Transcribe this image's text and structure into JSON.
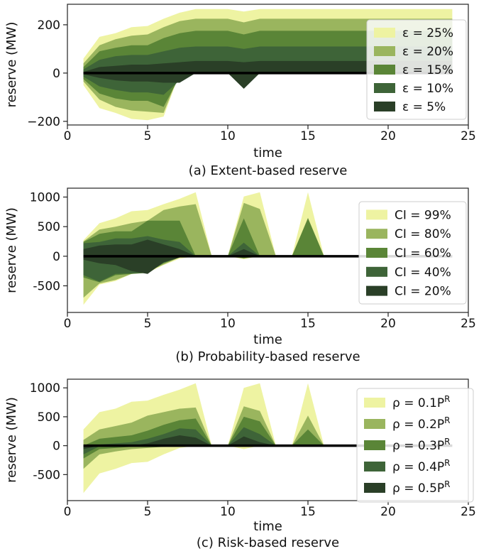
{
  "figure": {
    "colors": [
      "#eef3a2",
      "#9ab55e",
      "#5a8537",
      "#3e6438",
      "#2a3f27"
    ]
  },
  "chart_data": [
    {
      "type": "area",
      "title": "",
      "caption": "(a) Extent-based reserve",
      "xlabel": "time",
      "ylabel": "reserve (MW)",
      "xlim": [
        0,
        25
      ],
      "ylim": [
        -215,
        285
      ],
      "xticks": [
        0,
        5,
        10,
        15,
        20,
        25
      ],
      "yticks": [
        -200,
        0,
        200
      ],
      "ytick_labels": [
        "−200",
        "0",
        "200"
      ],
      "legend": {
        "placement": "right",
        "entries": [
          "ε = 25%",
          "ε = 20%",
          "ε = 15%",
          "ε = 10%",
          "ε = 5%"
        ]
      },
      "x": [
        1,
        2,
        3,
        4,
        5,
        6,
        7,
        8,
        9,
        10,
        11,
        12,
        13,
        14,
        15,
        16,
        17,
        18,
        19,
        20,
        21,
        22,
        23,
        24
      ],
      "series": [
        {
          "name": "ε = 25%",
          "upper": [
            60,
            150,
            165,
            190,
            195,
            225,
            250,
            265,
            265,
            265,
            255,
            265,
            265,
            265,
            265,
            265,
            265,
            265,
            265,
            265,
            265,
            265,
            265,
            265
          ],
          "lower": [
            -50,
            -145,
            -165,
            -190,
            -195,
            -180,
            0,
            0,
            0,
            0,
            0,
            0,
            0,
            0,
            0,
            0,
            0,
            0,
            0,
            0,
            0,
            0,
            0,
            0
          ]
        },
        {
          "name": "ε = 20%",
          "upper": [
            40,
            115,
            140,
            155,
            160,
            190,
            215,
            225,
            225,
            225,
            210,
            225,
            225,
            225,
            225,
            225,
            225,
            225,
            225,
            225,
            225,
            225,
            225,
            225
          ],
          "lower": [
            -35,
            -110,
            -140,
            -155,
            -160,
            -165,
            0,
            0,
            0,
            0,
            0,
            0,
            0,
            0,
            0,
            0,
            0,
            0,
            0,
            0,
            0,
            0,
            0,
            0
          ]
        },
        {
          "name": "ε = 15%",
          "upper": [
            25,
            90,
            105,
            115,
            115,
            145,
            165,
            175,
            175,
            175,
            160,
            175,
            175,
            175,
            175,
            175,
            175,
            175,
            175,
            175,
            175,
            175,
            175,
            175
          ],
          "lower": [
            -25,
            -85,
            -105,
            -115,
            -115,
            -140,
            -15,
            0,
            0,
            0,
            -30,
            0,
            0,
            0,
            0,
            0,
            0,
            0,
            0,
            0,
            0,
            0,
            0,
            0
          ]
        },
        {
          "name": "ε = 10%",
          "upper": [
            15,
            55,
            70,
            75,
            75,
            90,
            105,
            110,
            110,
            110,
            100,
            110,
            110,
            110,
            110,
            110,
            110,
            110,
            110,
            110,
            110,
            110,
            110,
            110
          ],
          "lower": [
            -15,
            -55,
            -70,
            -80,
            -80,
            -90,
            -30,
            0,
            0,
            0,
            -55,
            0,
            0,
            0,
            0,
            0,
            0,
            0,
            0,
            0,
            0,
            0,
            0,
            0
          ]
        },
        {
          "name": "ε = 5%",
          "upper": [
            5,
            25,
            30,
            35,
            35,
            40,
            45,
            50,
            50,
            50,
            45,
            50,
            50,
            50,
            50,
            50,
            50,
            50,
            50,
            50,
            50,
            50,
            50,
            50
          ],
          "lower": [
            -5,
            -20,
            -30,
            -35,
            -35,
            -40,
            -40,
            0,
            0,
            0,
            -65,
            0,
            0,
            0,
            0,
            0,
            0,
            0,
            0,
            0,
            0,
            0,
            0,
            0
          ]
        }
      ]
    },
    {
      "type": "area",
      "title": "",
      "caption": "(b) Probability-based reserve",
      "xlabel": "time",
      "ylabel": "reserve (MW)",
      "xlim": [
        0,
        25
      ],
      "ylim": [
        -950,
        1150
      ],
      "xticks": [
        0,
        5,
        10,
        15,
        20,
        25
      ],
      "yticks": [
        -500,
        0,
        500,
        1000
      ],
      "ytick_labels": [
        "-500",
        "0",
        "500",
        "1000"
      ],
      "legend": {
        "placement": "right",
        "entries": [
          "CI = 99%",
          "CI = 80%",
          "CI = 60%",
          "CI = 40%",
          "CI = 20%"
        ]
      },
      "x": [
        1,
        2,
        3,
        4,
        5,
        6,
        7,
        8,
        9,
        10,
        11,
        12,
        13,
        14,
        15,
        16,
        17,
        18,
        19,
        20,
        21,
        22,
        23,
        24
      ],
      "series": [
        {
          "name": "CI = 99%",
          "upper": [
            270,
            560,
            640,
            760,
            780,
            880,
            970,
            1080,
            0,
            0,
            1010,
            1080,
            0,
            0,
            1080,
            0,
            0,
            0,
            0,
            0,
            0,
            0,
            0,
            0
          ],
          "lower": [
            -820,
            -480,
            -420,
            -300,
            -280,
            -150,
            -40,
            0,
            0,
            0,
            -50,
            0,
            0,
            0,
            0,
            0,
            0,
            0,
            0,
            0,
            0,
            0,
            0,
            0
          ]
        },
        {
          "name": "CI = 80%",
          "upper": [
            250,
            450,
            500,
            560,
            600,
            780,
            840,
            880,
            0,
            0,
            900,
            800,
            0,
            0,
            650,
            0,
            0,
            0,
            0,
            0,
            0,
            0,
            0,
            0
          ],
          "lower": [
            -700,
            -460,
            -400,
            -300,
            -260,
            -140,
            -20,
            0,
            0,
            0,
            -40,
            0,
            0,
            0,
            0,
            0,
            0,
            0,
            0,
            0,
            0,
            0,
            0,
            0
          ]
        },
        {
          "name": "CI = 60%",
          "upper": [
            240,
            380,
            420,
            420,
            600,
            600,
            600,
            0,
            0,
            0,
            640,
            0,
            0,
            0,
            640,
            0,
            0,
            0,
            0,
            0,
            0,
            0,
            0,
            0
          ],
          "lower": [
            -360,
            -440,
            -320,
            -300,
            -280,
            -120,
            -20,
            0,
            0,
            0,
            -30,
            0,
            0,
            0,
            0,
            0,
            0,
            0,
            0,
            0,
            0,
            0,
            0,
            0
          ]
        },
        {
          "name": "CI = 40%",
          "upper": [
            220,
            240,
            300,
            300,
            340,
            280,
            240,
            0,
            0,
            0,
            230,
            0,
            0,
            0,
            0,
            0,
            0,
            0,
            0,
            0,
            0,
            0,
            0,
            0
          ],
          "lower": [
            -320,
            -430,
            -300,
            -290,
            -280,
            -110,
            -20,
            0,
            0,
            0,
            -20,
            0,
            0,
            0,
            0,
            0,
            0,
            0,
            0,
            0,
            0,
            0,
            0,
            0
          ]
        },
        {
          "name": "CI = 20%",
          "upper": [
            120,
            180,
            200,
            200,
            280,
            200,
            120,
            0,
            0,
            0,
            120,
            0,
            0,
            0,
            0,
            0,
            0,
            0,
            0,
            0,
            0,
            0,
            0,
            0
          ],
          "lower": [
            -60,
            -120,
            -150,
            -250,
            -300,
            -100,
            -20,
            0,
            0,
            0,
            -20,
            0,
            0,
            0,
            0,
            0,
            0,
            0,
            0,
            0,
            0,
            0,
            0,
            0
          ]
        }
      ]
    },
    {
      "type": "area",
      "title": "",
      "caption": "(c) Risk-based reserve",
      "xlabel": "time",
      "ylabel": "reserve (MW)",
      "xlim": [
        0,
        25
      ],
      "ylim": [
        -950,
        1150
      ],
      "xticks": [
        0,
        5,
        10,
        15,
        20,
        25
      ],
      "yticks": [
        -500,
        0,
        500,
        1000
      ],
      "ytick_labels": [
        "-500",
        "0",
        "500",
        "1000"
      ],
      "legend": {
        "placement": "right",
        "entries": [
          "ρ = 0.1P^R",
          "ρ = 0.2P^R",
          "ρ = 0.3P^R",
          "ρ = 0.4P^R",
          "ρ = 0.5P^R"
        ]
      },
      "x": [
        1,
        2,
        3,
        4,
        5,
        6,
        7,
        8,
        9,
        10,
        11,
        12,
        13,
        14,
        15,
        16,
        17,
        18,
        19,
        20,
        21,
        22,
        23,
        24
      ],
      "series": [
        {
          "name": "ρ = 0.1P^R",
          "upper": [
            280,
            580,
            640,
            760,
            780,
            880,
            970,
            1080,
            0,
            0,
            1000,
            1080,
            0,
            0,
            1080,
            0,
            0,
            0,
            0,
            0,
            0,
            0,
            0,
            0
          ],
          "lower": [
            -820,
            -480,
            -400,
            -300,
            -280,
            -150,
            -40,
            0,
            0,
            0,
            -60,
            0,
            0,
            0,
            0,
            0,
            0,
            0,
            0,
            0,
            0,
            0,
            0,
            0
          ]
        },
        {
          "name": "ρ = 0.2P^R",
          "upper": [
            100,
            280,
            340,
            400,
            520,
            580,
            640,
            660,
            0,
            0,
            680,
            600,
            0,
            0,
            520,
            0,
            0,
            0,
            0,
            0,
            0,
            0,
            0,
            0
          ],
          "lower": [
            -400,
            -150,
            -100,
            -60,
            -40,
            -20,
            0,
            0,
            0,
            0,
            0,
            0,
            0,
            0,
            0,
            0,
            0,
            0,
            0,
            0,
            0,
            0,
            0,
            0
          ]
        },
        {
          "name": "ρ = 0.3P^R",
          "upper": [
            0,
            120,
            150,
            180,
            260,
            360,
            440,
            470,
            0,
            0,
            500,
            420,
            0,
            0,
            280,
            0,
            0,
            0,
            0,
            0,
            0,
            0,
            0,
            0
          ],
          "lower": [
            -220,
            -60,
            -40,
            -20,
            -10,
            0,
            0,
            0,
            0,
            0,
            0,
            0,
            0,
            0,
            0,
            0,
            0,
            0,
            0,
            0,
            0,
            0,
            0,
            0
          ]
        },
        {
          "name": "ρ = 0.4P^R",
          "upper": [
            0,
            20,
            40,
            60,
            120,
            200,
            300,
            280,
            0,
            0,
            320,
            200,
            0,
            0,
            0,
            0,
            0,
            0,
            0,
            0,
            0,
            0,
            0,
            0
          ],
          "lower": [
            -150,
            -10,
            0,
            0,
            0,
            0,
            0,
            0,
            0,
            0,
            0,
            0,
            0,
            0,
            0,
            0,
            0,
            0,
            0,
            0,
            0,
            0,
            0,
            0
          ]
        },
        {
          "name": "ρ = 0.5P^R",
          "upper": [
            0,
            0,
            0,
            0,
            40,
            120,
            180,
            140,
            0,
            0,
            160,
            60,
            0,
            0,
            0,
            0,
            0,
            0,
            0,
            0,
            0,
            0,
            0,
            0
          ],
          "lower": [
            -60,
            0,
            0,
            0,
            0,
            0,
            0,
            0,
            0,
            0,
            0,
            0,
            0,
            0,
            0,
            0,
            0,
            0,
            0,
            0,
            0,
            0,
            0,
            0
          ]
        }
      ]
    }
  ]
}
